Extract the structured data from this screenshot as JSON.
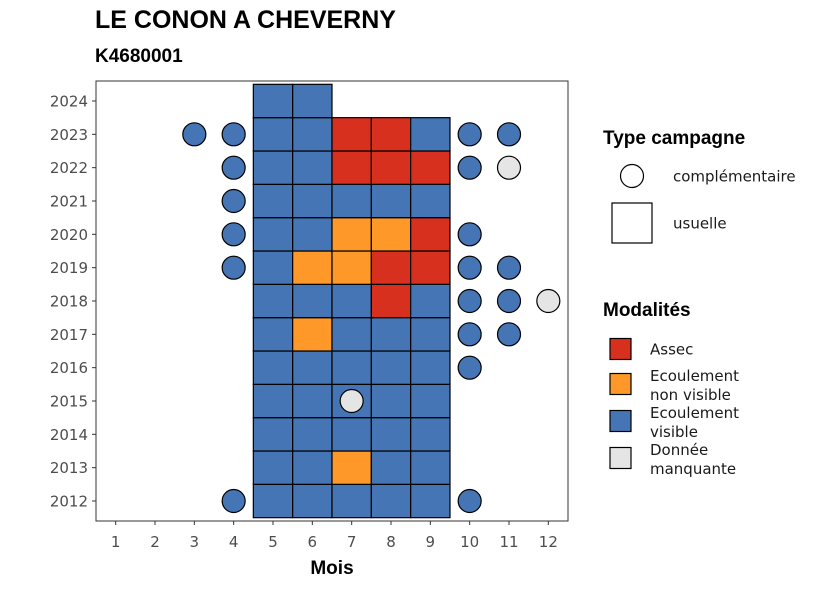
{
  "title": "LE CONON A CHEVERNY",
  "subtitle": "K4680001",
  "colors": {
    "assec": "#d7301f",
    "ecoulement_non_visible": "#fe9929",
    "ecoulement_visible": "#4575b4",
    "donnee_manquante": "#e5e5e5"
  },
  "chart_data": {
    "type": "heatmap",
    "xlabel": "Mois",
    "ylabel": "",
    "x_ticks": [
      1,
      2,
      3,
      4,
      5,
      6,
      7,
      8,
      9,
      10,
      11,
      12
    ],
    "y_ticks": [
      2012,
      2013,
      2014,
      2015,
      2016,
      2017,
      2018,
      2019,
      2020,
      2021,
      2022,
      2023,
      2024
    ],
    "xlim": [
      0.5,
      12.5
    ],
    "ylim": [
      2011.4,
      2024.6
    ],
    "legend_position": "right",
    "legend_shape": {
      "title": "Type campagne",
      "items": [
        {
          "label": "complémentaire",
          "shape": "circle"
        },
        {
          "label": "usuelle",
          "shape": "square"
        }
      ]
    },
    "legend_fill": {
      "title": "Modalités",
      "items": [
        {
          "key": "A",
          "lines": [
            "Assec"
          ]
        },
        {
          "key": "N",
          "lines": [
            "Ecoulement",
            "non visible"
          ]
        },
        {
          "key": "V",
          "lines": [
            "Ecoulement",
            "visible"
          ]
        },
        {
          "key": "M",
          "lines": [
            "Donnée",
            "manquante"
          ]
        }
      ]
    },
    "tiles": {
      "2024": {
        "5": "V",
        "6": "V"
      },
      "2023": {
        "5": "V",
        "6": "V",
        "7": "A",
        "8": "A",
        "9": "V"
      },
      "2022": {
        "5": "V",
        "6": "V",
        "7": "A",
        "8": "A",
        "9": "A"
      },
      "2021": {
        "5": "V",
        "6": "V",
        "7": "V",
        "8": "V",
        "9": "V"
      },
      "2020": {
        "5": "V",
        "6": "V",
        "7": "N",
        "8": "N",
        "9": "A"
      },
      "2019": {
        "5": "V",
        "6": "N",
        "7": "N",
        "8": "A",
        "9": "A"
      },
      "2018": {
        "5": "V",
        "6": "V",
        "7": "V",
        "8": "A",
        "9": "V"
      },
      "2017": {
        "5": "V",
        "6": "N",
        "7": "V",
        "8": "V",
        "9": "V"
      },
      "2016": {
        "5": "V",
        "6": "V",
        "7": "V",
        "8": "V",
        "9": "V"
      },
      "2015": {
        "5": "V",
        "6": "V",
        "7": "V",
        "8": "V",
        "9": "V"
      },
      "2014": {
        "5": "V",
        "6": "V",
        "7": "V",
        "8": "V",
        "9": "V"
      },
      "2013": {
        "5": "V",
        "6": "V",
        "7": "N",
        "8": "V",
        "9": "V"
      },
      "2012": {
        "5": "V",
        "6": "V",
        "7": "V",
        "8": "V",
        "9": "V"
      }
    },
    "circles": [
      {
        "month": 3,
        "year": 2023,
        "mod": "V"
      },
      {
        "month": 4,
        "year": 2023,
        "mod": "V"
      },
      {
        "month": 10,
        "year": 2023,
        "mod": "V"
      },
      {
        "month": 11,
        "year": 2023,
        "mod": "V"
      },
      {
        "month": 4,
        "year": 2022,
        "mod": "V"
      },
      {
        "month": 10,
        "year": 2022,
        "mod": "V"
      },
      {
        "month": 11,
        "year": 2022,
        "mod": "M"
      },
      {
        "month": 4,
        "year": 2021,
        "mod": "V"
      },
      {
        "month": 4,
        "year": 2020,
        "mod": "V"
      },
      {
        "month": 10,
        "year": 2020,
        "mod": "V"
      },
      {
        "month": 4,
        "year": 2019,
        "mod": "V"
      },
      {
        "month": 10,
        "year": 2019,
        "mod": "V"
      },
      {
        "month": 11,
        "year": 2019,
        "mod": "V"
      },
      {
        "month": 10,
        "year": 2018,
        "mod": "V"
      },
      {
        "month": 11,
        "year": 2018,
        "mod": "V"
      },
      {
        "month": 12,
        "year": 2018,
        "mod": "M"
      },
      {
        "month": 10,
        "year": 2017,
        "mod": "V"
      },
      {
        "month": 11,
        "year": 2017,
        "mod": "V"
      },
      {
        "month": 10,
        "year": 2016,
        "mod": "V"
      },
      {
        "month": 7,
        "year": 2015,
        "mod": "M"
      },
      {
        "month": 4,
        "year": 2012,
        "mod": "V"
      },
      {
        "month": 10,
        "year": 2012,
        "mod": "V"
      }
    ]
  }
}
